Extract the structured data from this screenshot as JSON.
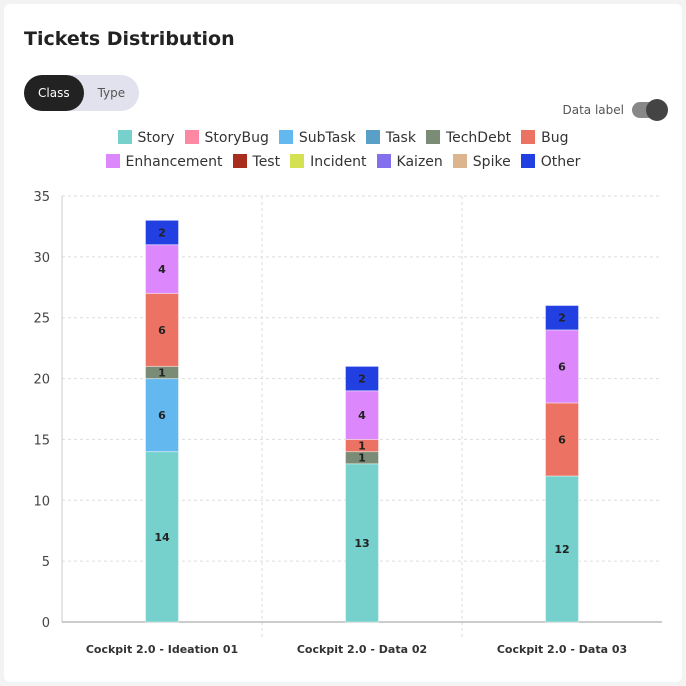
{
  "header": {
    "title": "Tickets Distribution"
  },
  "toggle": {
    "options": [
      "Class",
      "Type"
    ],
    "selected": "Class"
  },
  "data_label": {
    "label": "Data label",
    "on": true
  },
  "chart_data": {
    "type": "bar",
    "stacked": true,
    "categories": [
      "Cockpit 2.0 - Ideation 01",
      "Cockpit 2.0 - Data 02",
      "Cockpit 2.0 - Data 03"
    ],
    "ylim": [
      0,
      35
    ],
    "yticks": [
      0,
      5,
      10,
      15,
      20,
      25,
      30,
      35
    ],
    "grid": true,
    "legend_placement": "top",
    "series": [
      {
        "name": "Story",
        "color": "#76d1cd",
        "values": [
          14,
          13,
          12
        ]
      },
      {
        "name": "StoryBug",
        "color": "#fd88a3",
        "values": [
          0,
          0,
          0
        ]
      },
      {
        "name": "SubTask",
        "color": "#64b8f0",
        "values": [
          6,
          0,
          0
        ]
      },
      {
        "name": "Task",
        "color": "#58a0c8",
        "values": [
          0,
          0,
          0
        ]
      },
      {
        "name": "TechDebt",
        "color": "#7a8c75",
        "values": [
          1,
          1,
          0
        ]
      },
      {
        "name": "Bug",
        "color": "#ec7264",
        "values": [
          6,
          1,
          6
        ]
      },
      {
        "name": "Enhancement",
        "color": "#dc88fc",
        "values": [
          4,
          4,
          6
        ]
      },
      {
        "name": "Test",
        "color": "#a82d1c",
        "values": [
          0,
          0,
          0
        ]
      },
      {
        "name": "Incident",
        "color": "#d4e152",
        "values": [
          0,
          0,
          0
        ]
      },
      {
        "name": "Kaizen",
        "color": "#8270ec",
        "values": [
          0,
          0,
          0
        ]
      },
      {
        "name": "Spike",
        "color": "#dcb48e",
        "values": [
          0,
          0,
          0
        ]
      },
      {
        "name": "Other",
        "color": "#2240e2",
        "values": [
          2,
          2,
          2
        ]
      }
    ]
  }
}
